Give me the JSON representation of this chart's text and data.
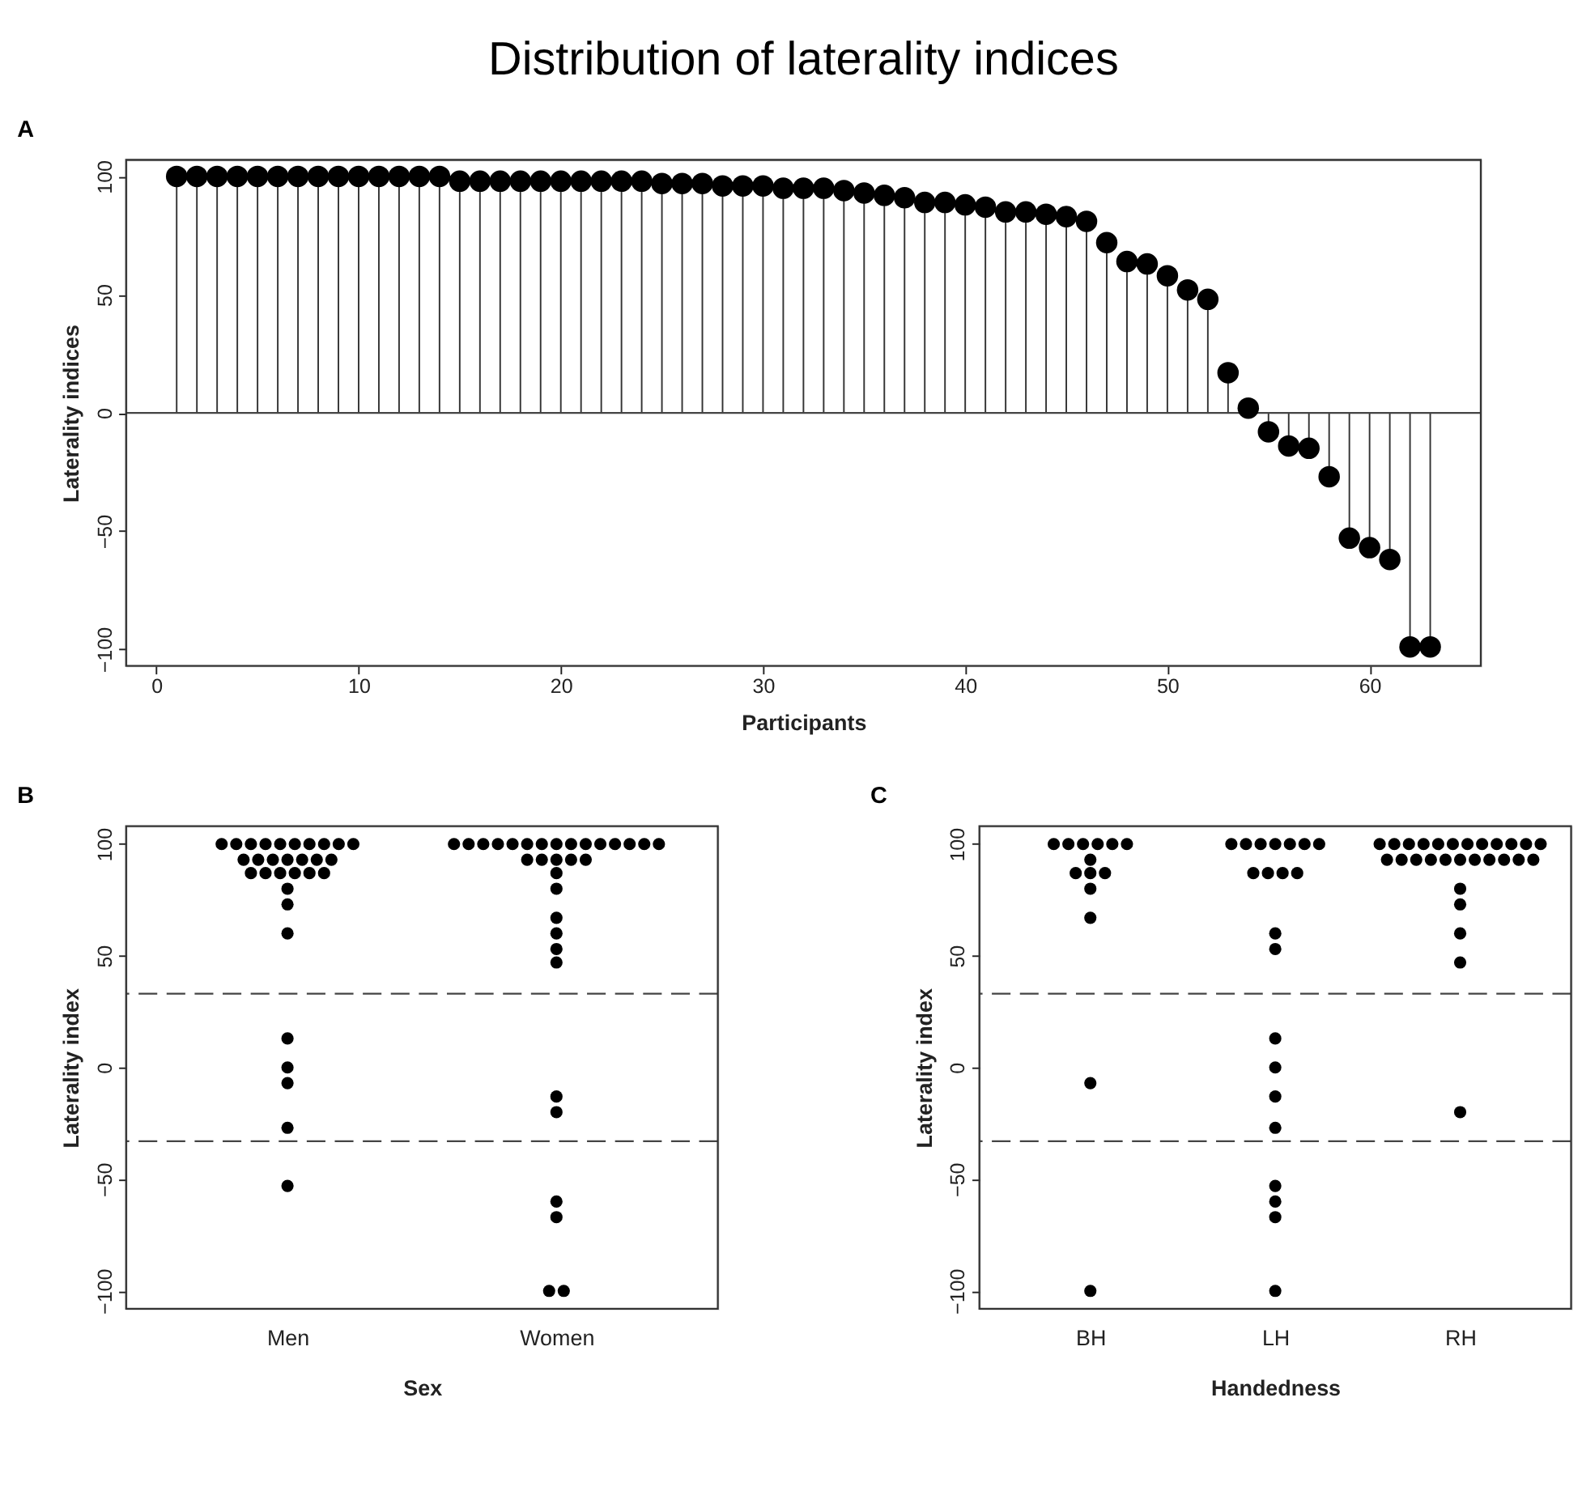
{
  "chart_data": [
    {
      "type": "lollipop",
      "title": "Distribution of laterality indices",
      "annotations": [
        "A"
      ],
      "xlabel": "Participants",
      "ylabel": "Laterality indices",
      "x": [
        1,
        2,
        3,
        4,
        5,
        6,
        7,
        8,
        9,
        10,
        11,
        12,
        13,
        14,
        15,
        16,
        17,
        18,
        19,
        20,
        21,
        22,
        23,
        24,
        25,
        26,
        27,
        28,
        29,
        30,
        31,
        32,
        33,
        34,
        35,
        36,
        37,
        38,
        39,
        40,
        41,
        42,
        43,
        44,
        45,
        46,
        47,
        48,
        49,
        50,
        51,
        52,
        53,
        54,
        55,
        56,
        57,
        58,
        59,
        60,
        61,
        62,
        63
      ],
      "values": [
        100,
        100,
        100,
        100,
        100,
        100,
        100,
        100,
        100,
        100,
        100,
        100,
        100,
        100,
        98,
        98,
        98,
        98,
        98,
        98,
        98,
        98,
        98,
        98,
        97,
        97,
        97,
        96,
        96,
        96,
        95,
        95,
        95,
        94,
        93,
        92,
        91,
        89,
        89,
        88,
        87,
        85,
        85,
        84,
        83,
        81,
        72,
        64,
        63,
        58,
        52,
        48,
        17,
        2,
        -8,
        -14,
        -15,
        -27,
        -53,
        -57,
        -62,
        -99,
        -99
      ],
      "color": "#000000",
      "xlim": [
        -1.5,
        65.5
      ],
      "ylim": [
        -107,
        107
      ],
      "xticks": [
        0,
        10,
        20,
        30,
        40,
        50,
        60
      ],
      "yticks": [
        -100,
        -50,
        0,
        50,
        100
      ],
      "ref_lines": [
        {
          "axis": "y",
          "value": 0,
          "line_style": "solid"
        }
      ],
      "marker": "circle",
      "grid": false
    },
    {
      "type": "scatter",
      "annotations": [
        "B"
      ],
      "xlabel": "Sex",
      "ylabel": "Laterality index",
      "categories": [
        "Men",
        "Women"
      ],
      "series": [
        {
          "color": "#000000",
          "x": [
            "Men",
            "Men",
            "Men",
            "Men",
            "Men",
            "Men",
            "Men",
            "Men",
            "Men",
            "Men",
            "Men",
            "Men",
            "Men",
            "Men",
            "Men",
            "Men",
            "Men",
            "Men",
            "Men",
            "Men",
            "Men",
            "Men",
            "Men",
            "Men",
            "Men",
            "Men",
            "Men",
            "Men",
            "Men",
            "Men",
            "Men",
            "Women",
            "Women",
            "Women",
            "Women",
            "Women",
            "Women",
            "Women",
            "Women",
            "Women",
            "Women",
            "Women",
            "Women",
            "Women",
            "Women",
            "Women",
            "Women",
            "Women",
            "Women",
            "Women",
            "Women",
            "Women",
            "Women",
            "Women",
            "Women",
            "Women",
            "Women",
            "Women",
            "Women",
            "Women",
            "Women",
            "Women",
            "Women"
          ],
          "values": [
            100,
            100,
            100,
            100,
            100,
            100,
            100,
            100,
            100,
            100,
            93,
            93,
            93,
            93,
            93,
            93,
            93,
            87,
            87,
            87,
            87,
            87,
            87,
            80,
            73,
            60,
            13,
            0,
            -7,
            -27,
            -53,
            100,
            100,
            100,
            100,
            100,
            100,
            100,
            100,
            100,
            100,
            100,
            100,
            100,
            100,
            100,
            93,
            93,
            93,
            93,
            93,
            87,
            80,
            67,
            60,
            53,
            47,
            -13,
            -20,
            -60,
            -67,
            -100,
            -100
          ]
        }
      ],
      "ylim": [
        -108,
        108
      ],
      "yticks": [
        -100,
        -50,
        0,
        50,
        100
      ],
      "ref_lines": [
        {
          "axis": "y",
          "value": 33,
          "line_style": "dashed"
        },
        {
          "axis": "y",
          "value": -33,
          "line_style": "dashed"
        }
      ],
      "marker": "circle",
      "grid": false
    },
    {
      "type": "scatter",
      "annotations": [
        "C"
      ],
      "xlabel": "Handedness",
      "ylabel": "Laterality index",
      "categories": [
        "BH",
        "LH",
        "RH"
      ],
      "series": [
        {
          "color": "#000000",
          "x": [
            "BH",
            "BH",
            "BH",
            "BH",
            "BH",
            "BH",
            "BH",
            "BH",
            "BH",
            "BH",
            "BH",
            "BH",
            "BH",
            "BH",
            "LH",
            "LH",
            "LH",
            "LH",
            "LH",
            "LH",
            "LH",
            "LH",
            "LH",
            "LH",
            "LH",
            "LH",
            "LH",
            "LH",
            "LH",
            "LH",
            "LH",
            "LH",
            "LH",
            "LH",
            "LH",
            "RH",
            "RH",
            "RH",
            "RH",
            "RH",
            "RH",
            "RH",
            "RH",
            "RH",
            "RH",
            "RH",
            "RH",
            "RH",
            "RH",
            "RH",
            "RH",
            "RH",
            "RH",
            "RH",
            "RH",
            "RH",
            "RH",
            "RH",
            "RH",
            "RH",
            "RH",
            "RH",
            "RH"
          ],
          "values": [
            100,
            100,
            100,
            100,
            100,
            100,
            93,
            87,
            87,
            87,
            80,
            67,
            -7,
            -100,
            100,
            100,
            100,
            100,
            100,
            100,
            100,
            87,
            87,
            87,
            87,
            60,
            53,
            13,
            0,
            -13,
            -27,
            -53,
            -60,
            -67,
            -100,
            100,
            100,
            100,
            100,
            100,
            100,
            100,
            100,
            100,
            100,
            100,
            100,
            93,
            93,
            93,
            93,
            93,
            93,
            93,
            93,
            93,
            93,
            93,
            80,
            73,
            60,
            47,
            -20
          ]
        }
      ],
      "ylim": [
        -108,
        108
      ],
      "yticks": [
        -100,
        -50,
        0,
        50,
        100
      ],
      "ref_lines": [
        {
          "axis": "y",
          "value": 33,
          "line_style": "dashed"
        },
        {
          "axis": "y",
          "value": -33,
          "line_style": "dashed"
        }
      ],
      "marker": "circle",
      "grid": false
    }
  ]
}
